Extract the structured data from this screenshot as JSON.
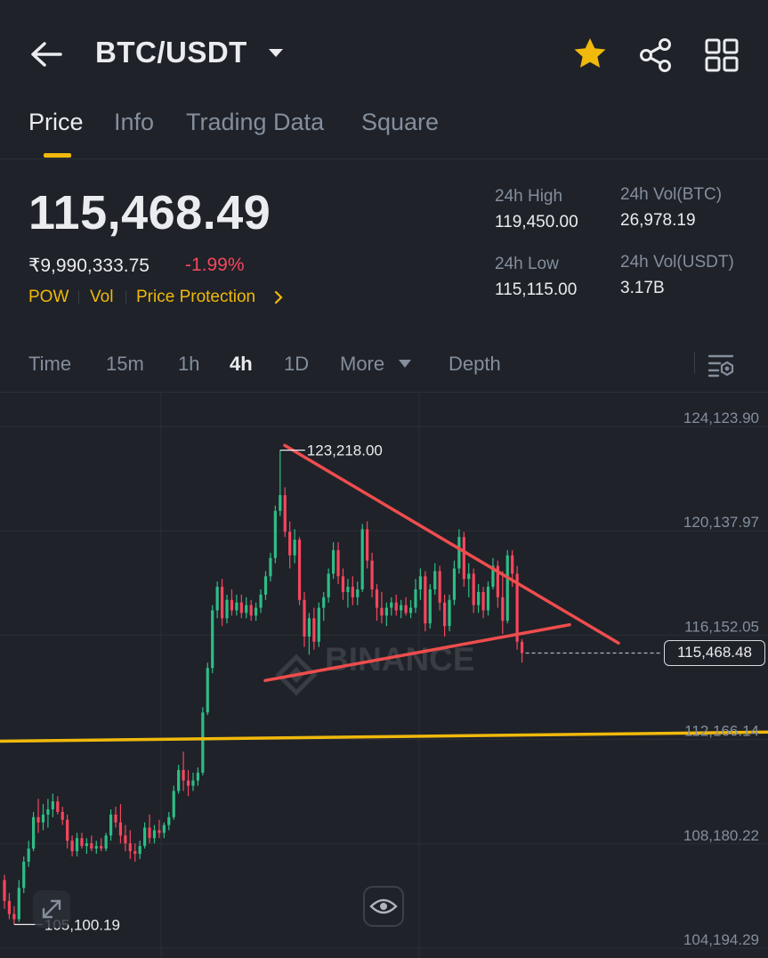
{
  "header": {
    "pair": "BTC/USDT",
    "icons": {
      "back": "arrow-left-icon",
      "dropdown": "caret-down-icon",
      "favorite": "star-icon",
      "share": "share-icon",
      "more": "grid-icon"
    },
    "favorite_color": "#f0b90b"
  },
  "tabs": [
    {
      "label": "Price",
      "active": true
    },
    {
      "label": "Info",
      "active": false
    },
    {
      "label": "Trading Data",
      "active": false
    },
    {
      "label": "Square",
      "active": false
    }
  ],
  "ticker": {
    "last_price": "115,468.49",
    "fiat_price": "₹9,990,333.75",
    "change": "-1.99%",
    "tags": [
      "POW",
      "Vol",
      "Price Protection"
    ],
    "stats": [
      {
        "label": "24h High",
        "value": "119,450.00"
      },
      {
        "label": "24h Vol(BTC)",
        "value": "26,978.19"
      },
      {
        "label": "24h Low",
        "value": "115,115.00"
      },
      {
        "label": "24h Vol(USDT)",
        "value": "3.17B"
      }
    ]
  },
  "intervals": [
    {
      "label": "Time",
      "active": false
    },
    {
      "label": "15m",
      "active": false
    },
    {
      "label": "1h",
      "active": false
    },
    {
      "label": "4h",
      "active": true
    },
    {
      "label": "1D",
      "active": false
    },
    {
      "label": "More",
      "active": false
    },
    {
      "label": "Depth",
      "active": false
    }
  ],
  "chart_data": {
    "type": "candlestick",
    "watermark": "BINANCE",
    "y_ticks": [
      "124,123.90",
      "120,137.97",
      "116,152.05",
      "112,166.14",
      "108,180.22",
      "104,194.29"
    ],
    "ylim": [
      104194.29,
      124123.9
    ],
    "high_label": "123,218.00",
    "low_label": "105,100.19",
    "last_price_label": "115,468.48",
    "colors": {
      "up": "#2ebd85",
      "down": "#f6465d",
      "trendline": "#ef4d4d",
      "support": "#f0b90b"
    },
    "trendlines": [
      {
        "name": "upper",
        "from": [
          0,
          123400
        ],
        "to": [
          1,
          115850
        ]
      },
      {
        "name": "lower",
        "from": [
          0,
          114420
        ],
        "to": [
          1,
          116550
        ]
      }
    ],
    "support_line": {
      "from_value": 112100,
      "to_value": 112450
    },
    "candles": [
      {
        "o": 106800,
        "h": 107000,
        "l": 105700,
        "c": 106000
      },
      {
        "o": 106000,
        "h": 106300,
        "l": 105300,
        "c": 105500
      },
      {
        "o": 105500,
        "h": 105800,
        "l": 105100,
        "c": 105300
      },
      {
        "o": 105300,
        "h": 106800,
        "l": 105200,
        "c": 106500
      },
      {
        "o": 106500,
        "h": 107700,
        "l": 106300,
        "c": 107500
      },
      {
        "o": 107500,
        "h": 108300,
        "l": 107300,
        "c": 108000
      },
      {
        "o": 108000,
        "h": 109400,
        "l": 107900,
        "c": 109200
      },
      {
        "o": 109200,
        "h": 109900,
        "l": 108600,
        "c": 109000
      },
      {
        "o": 109000,
        "h": 109700,
        "l": 108700,
        "c": 109300
      },
      {
        "o": 109300,
        "h": 109900,
        "l": 108800,
        "c": 109500
      },
      {
        "o": 109500,
        "h": 110100,
        "l": 109200,
        "c": 109800
      },
      {
        "o": 109800,
        "h": 110000,
        "l": 109300,
        "c": 109400
      },
      {
        "o": 109400,
        "h": 109600,
        "l": 108900,
        "c": 109100
      },
      {
        "o": 109100,
        "h": 109300,
        "l": 108000,
        "c": 108300
      },
      {
        "o": 108300,
        "h": 108500,
        "l": 107700,
        "c": 107900
      },
      {
        "o": 107900,
        "h": 108600,
        "l": 107700,
        "c": 108400
      },
      {
        "o": 108400,
        "h": 108600,
        "l": 108000,
        "c": 108100
      },
      {
        "o": 108100,
        "h": 108400,
        "l": 107800,
        "c": 108200
      },
      {
        "o": 108200,
        "h": 108500,
        "l": 107900,
        "c": 108000
      },
      {
        "o": 108000,
        "h": 108300,
        "l": 107800,
        "c": 108100
      },
      {
        "o": 108100,
        "h": 108400,
        "l": 107900,
        "c": 108000
      },
      {
        "o": 108000,
        "h": 108600,
        "l": 107900,
        "c": 108500
      },
      {
        "o": 108500,
        "h": 109500,
        "l": 108300,
        "c": 109300
      },
      {
        "o": 109300,
        "h": 109600,
        "l": 108800,
        "c": 109000
      },
      {
        "o": 109000,
        "h": 109700,
        "l": 108200,
        "c": 108500
      },
      {
        "o": 108500,
        "h": 108900,
        "l": 107900,
        "c": 108200
      },
      {
        "o": 108200,
        "h": 108700,
        "l": 107600,
        "c": 107900
      },
      {
        "o": 107900,
        "h": 108200,
        "l": 107500,
        "c": 107800
      },
      {
        "o": 107800,
        "h": 108300,
        "l": 107600,
        "c": 108100
      },
      {
        "o": 108100,
        "h": 109000,
        "l": 108000,
        "c": 108800
      },
      {
        "o": 108800,
        "h": 109300,
        "l": 108200,
        "c": 108400
      },
      {
        "o": 108400,
        "h": 108900,
        "l": 108200,
        "c": 108700
      },
      {
        "o": 108700,
        "h": 109100,
        "l": 108400,
        "c": 108600
      },
      {
        "o": 108600,
        "h": 109000,
        "l": 108400,
        "c": 108900
      },
      {
        "o": 108900,
        "h": 109400,
        "l": 108700,
        "c": 109200
      },
      {
        "o": 109200,
        "h": 110400,
        "l": 109100,
        "c": 110200
      },
      {
        "o": 110200,
        "h": 111200,
        "l": 110100,
        "c": 111000
      },
      {
        "o": 111000,
        "h": 111700,
        "l": 110200,
        "c": 110600
      },
      {
        "o": 110600,
        "h": 111000,
        "l": 110000,
        "c": 110400
      },
      {
        "o": 110400,
        "h": 110900,
        "l": 110200,
        "c": 110600
      },
      {
        "o": 110600,
        "h": 111100,
        "l": 110400,
        "c": 110900
      },
      {
        "o": 110900,
        "h": 113400,
        "l": 110800,
        "c": 113200
      },
      {
        "o": 113200,
        "h": 115100,
        "l": 113100,
        "c": 114900
      },
      {
        "o": 114900,
        "h": 117300,
        "l": 114700,
        "c": 117100
      },
      {
        "o": 117100,
        "h": 118200,
        "l": 116800,
        "c": 118000
      },
      {
        "o": 118000,
        "h": 118300,
        "l": 116500,
        "c": 116800
      },
      {
        "o": 116800,
        "h": 117700,
        "l": 116600,
        "c": 117500
      },
      {
        "o": 117500,
        "h": 117900,
        "l": 116900,
        "c": 117100
      },
      {
        "o": 117100,
        "h": 117700,
        "l": 116900,
        "c": 117400
      },
      {
        "o": 117400,
        "h": 117700,
        "l": 116800,
        "c": 117000
      },
      {
        "o": 117000,
        "h": 117600,
        "l": 116800,
        "c": 117300
      },
      {
        "o": 117300,
        "h": 117500,
        "l": 116700,
        "c": 116900
      },
      {
        "o": 116900,
        "h": 117400,
        "l": 116700,
        "c": 117200
      },
      {
        "o": 117200,
        "h": 117900,
        "l": 117000,
        "c": 117700
      },
      {
        "o": 117700,
        "h": 118600,
        "l": 117500,
        "c": 118400
      },
      {
        "o": 118400,
        "h": 119300,
        "l": 118200,
        "c": 119100
      },
      {
        "o": 119100,
        "h": 121100,
        "l": 118900,
        "c": 120900
      },
      {
        "o": 120900,
        "h": 123218,
        "l": 120700,
        "c": 121500
      },
      {
        "o": 121500,
        "h": 121800,
        "l": 119900,
        "c": 120100
      },
      {
        "o": 120100,
        "h": 120500,
        "l": 118700,
        "c": 119200
      },
      {
        "o": 119200,
        "h": 120200,
        "l": 118900,
        "c": 119800
      },
      {
        "o": 119800,
        "h": 119900,
        "l": 117300,
        "c": 117500
      },
      {
        "o": 117500,
        "h": 117800,
        "l": 115700,
        "c": 116100
      },
      {
        "o": 116100,
        "h": 117000,
        "l": 115400,
        "c": 116800
      },
      {
        "o": 116800,
        "h": 117200,
        "l": 115600,
        "c": 115900
      },
      {
        "o": 115900,
        "h": 117400,
        "l": 115700,
        "c": 117200
      },
      {
        "o": 117200,
        "h": 117800,
        "l": 116700,
        "c": 117600
      },
      {
        "o": 117600,
        "h": 118700,
        "l": 117400,
        "c": 118500
      },
      {
        "o": 118500,
        "h": 119700,
        "l": 118300,
        "c": 119400
      },
      {
        "o": 119400,
        "h": 119700,
        "l": 118100,
        "c": 118400
      },
      {
        "o": 118400,
        "h": 118700,
        "l": 117500,
        "c": 117800
      },
      {
        "o": 117800,
        "h": 118300,
        "l": 117200,
        "c": 118000
      },
      {
        "o": 118000,
        "h": 118400,
        "l": 117300,
        "c": 117600
      },
      {
        "o": 117600,
        "h": 118200,
        "l": 117300,
        "c": 117900
      },
      {
        "o": 117900,
        "h": 120400,
        "l": 117800,
        "c": 120200
      },
      {
        "o": 120200,
        "h": 120500,
        "l": 118700,
        "c": 119000
      },
      {
        "o": 119000,
        "h": 119300,
        "l": 117600,
        "c": 117900
      },
      {
        "o": 117900,
        "h": 118100,
        "l": 116700,
        "c": 117200
      },
      {
        "o": 117200,
        "h": 117800,
        "l": 116600,
        "c": 116900
      },
      {
        "o": 116900,
        "h": 117400,
        "l": 116500,
        "c": 117200
      },
      {
        "o": 117200,
        "h": 117600,
        "l": 116900,
        "c": 117400
      },
      {
        "o": 117400,
        "h": 117700,
        "l": 116900,
        "c": 117100
      },
      {
        "o": 117100,
        "h": 117500,
        "l": 116800,
        "c": 117300
      },
      {
        "o": 117300,
        "h": 117600,
        "l": 116900,
        "c": 117000
      },
      {
        "o": 117000,
        "h": 117500,
        "l": 116800,
        "c": 117200
      },
      {
        "o": 117200,
        "h": 118300,
        "l": 117000,
        "c": 117900
      },
      {
        "o": 117900,
        "h": 118700,
        "l": 117500,
        "c": 118400
      },
      {
        "o": 118400,
        "h": 118600,
        "l": 116300,
        "c": 116600
      },
      {
        "o": 116600,
        "h": 118100,
        "l": 116400,
        "c": 117900
      },
      {
        "o": 117900,
        "h": 118900,
        "l": 117700,
        "c": 118600
      },
      {
        "o": 118600,
        "h": 118800,
        "l": 117100,
        "c": 117400
      },
      {
        "o": 117400,
        "h": 117700,
        "l": 116100,
        "c": 116500
      },
      {
        "o": 116500,
        "h": 117700,
        "l": 116300,
        "c": 117500
      },
      {
        "o": 117500,
        "h": 119000,
        "l": 117300,
        "c": 118700
      },
      {
        "o": 118700,
        "h": 120200,
        "l": 118500,
        "c": 119900
      },
      {
        "o": 119900,
        "h": 120100,
        "l": 118000,
        "c": 118300
      },
      {
        "o": 118300,
        "h": 118900,
        "l": 117600,
        "c": 118500
      },
      {
        "o": 118500,
        "h": 118700,
        "l": 117000,
        "c": 117300
      },
      {
        "o": 117300,
        "h": 118100,
        "l": 117000,
        "c": 117800
      },
      {
        "o": 117800,
        "h": 118000,
        "l": 116800,
        "c": 117100
      },
      {
        "o": 117100,
        "h": 118200,
        "l": 116900,
        "c": 118000
      },
      {
        "o": 118000,
        "h": 119100,
        "l": 117900,
        "c": 118800
      },
      {
        "o": 118800,
        "h": 119000,
        "l": 117200,
        "c": 117600
      },
      {
        "o": 117600,
        "h": 118600,
        "l": 116200,
        "c": 116700
      },
      {
        "o": 116700,
        "h": 119400,
        "l": 116600,
        "c": 119200
      },
      {
        "o": 119200,
        "h": 119400,
        "l": 118000,
        "c": 118500
      },
      {
        "o": 118500,
        "h": 118800,
        "l": 115600,
        "c": 115900
      },
      {
        "o": 115900,
        "h": 116000,
        "l": 115100,
        "c": 115468.48
      }
    ]
  },
  "controls": {
    "expand_icon": "expand-icon",
    "visibility_icon": "eye-icon",
    "settings_icon": "chart-settings-icon"
  }
}
